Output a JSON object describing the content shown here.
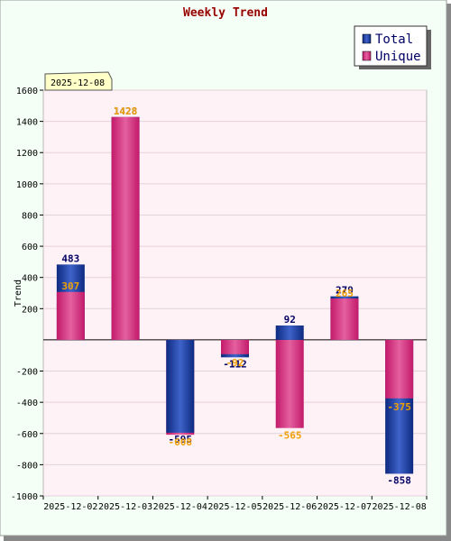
{
  "chart_data": {
    "type": "bar",
    "title": "Weekly Trend",
    "xlabel": "",
    "ylabel": "Trend",
    "ylim": [
      -1000,
      1600
    ],
    "yticks": [
      -1000,
      -800,
      -600,
      -400,
      -200,
      200,
      400,
      600,
      800,
      1000,
      1200,
      1400,
      1600
    ],
    "categories": [
      "2025-12-02",
      "2025-12-03",
      "2025-12-04",
      "2025-12-05",
      "2025-12-06",
      "2025-12-07",
      "2025-12-08"
    ],
    "series": [
      {
        "name": "Total",
        "values": [
          483,
          1428,
          -595,
          -112,
          92,
          279,
          -858
        ],
        "color": "#1f3f99",
        "label_color": "#000066"
      },
      {
        "name": "Unique",
        "values": [
          307,
          1428,
          -608,
          -92,
          -565,
          265,
          -375
        ],
        "color": "#d6307f",
        "label_color": "#f0a000"
      }
    ],
    "legend_position": "top-right",
    "grid": true,
    "annotation": "2025-12-08"
  }
}
